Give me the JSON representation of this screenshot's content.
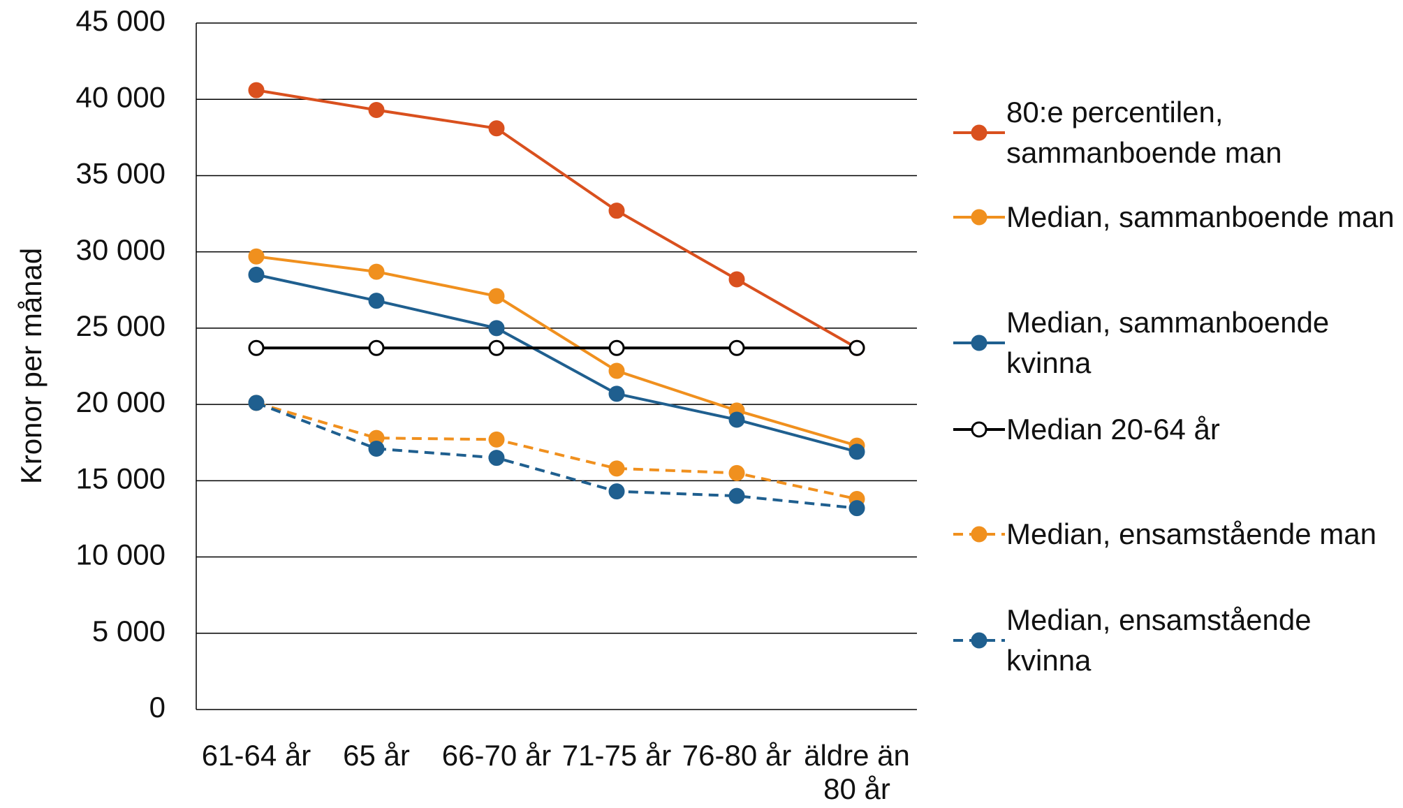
{
  "chart_data": {
    "type": "line",
    "y_label": "Kronor per månad",
    "categories": [
      "61-64 år",
      "65 år",
      "66-70 år",
      "71-75 år",
      "76-80 år",
      "äldre än 80 år"
    ],
    "series": [
      {
        "name": "80:e percentilen, sammanboende man",
        "color": "#d9501e",
        "line_style": "solid",
        "marker": "filled",
        "values": [
          40600,
          39300,
          38100,
          32700,
          28200,
          23700
        ]
      },
      {
        "name": "Median, sammanboende man",
        "color": "#f0901e",
        "line_style": "solid",
        "marker": "filled",
        "values": [
          29700,
          28700,
          27100,
          22200,
          19600,
          17300
        ]
      },
      {
        "name": "Median, sammanboende kvinna",
        "color": "#1f5f8f",
        "line_style": "solid",
        "marker": "filled",
        "values": [
          28500,
          26800,
          25000,
          20700,
          19000,
          16900
        ]
      },
      {
        "name": "Median 20-64 år",
        "color": "#000000",
        "line_style": "solid",
        "marker": "open",
        "values": [
          23700,
          23700,
          23700,
          23700,
          23700,
          23700
        ]
      },
      {
        "name": "Median, ensamstående man",
        "color": "#f0901e",
        "line_style": "dashed",
        "marker": "filled",
        "values": [
          20100,
          17800,
          17700,
          15800,
          15500,
          13800
        ]
      },
      {
        "name": "Median, ensamstående kvinna",
        "color": "#1f5f8f",
        "line_style": "dashed",
        "marker": "filled",
        "values": [
          20100,
          17100,
          16500,
          14300,
          14000,
          13200
        ]
      }
    ],
    "ylim": [
      0,
      45000
    ],
    "yticks": [
      {
        "value": 0,
        "label": "0"
      },
      {
        "value": 5000,
        "label": "5 000"
      },
      {
        "value": 10000,
        "label": "10 000"
      },
      {
        "value": 15000,
        "label": "15 000"
      },
      {
        "value": 20000,
        "label": "20 000"
      },
      {
        "value": 25000,
        "label": "25 000"
      },
      {
        "value": 30000,
        "label": "30 000"
      },
      {
        "value": 35000,
        "label": "35 000"
      },
      {
        "value": 40000,
        "label": "40 000"
      },
      {
        "value": 45000,
        "label": "45 000"
      }
    ],
    "grid": true,
    "legend": "right"
  }
}
